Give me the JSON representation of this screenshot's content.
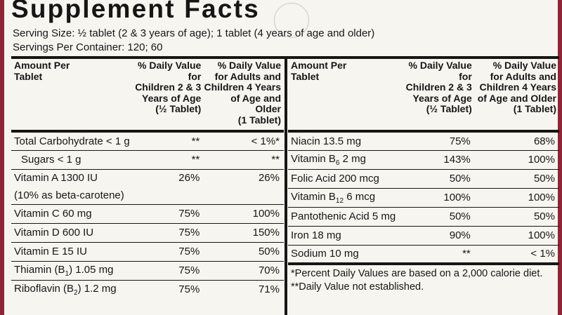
{
  "title": "Supplement Facts",
  "serving_size": "Serving Size: ½ tablet (2 & 3 years of age); 1 tablet (4 years of age and older)",
  "servings_per_container": "Servings Per Container: 120; 60",
  "header": {
    "col1": [
      "Amount Per",
      "Tablet"
    ],
    "col2": [
      "% Daily Value for",
      "Children 2 & 3",
      "Years of Age",
      "(½ Tablet)"
    ],
    "col3": [
      "% Daily Value",
      "for Adults and",
      "Children 4 Years",
      "of Age and Older",
      "(1 Tablet)"
    ]
  },
  "left_rows": [
    {
      "name": "Total Carbohydrate < 1 g",
      "child": "**",
      "adult": "< 1%*"
    },
    {
      "name": "Sugars < 1 g",
      "child": "**",
      "adult": "**"
    },
    {
      "name": "Vitamin A 1300 IU",
      "child": "26%",
      "adult": "26%"
    },
    {
      "name": "(10% as beta-carotene)",
      "child": "",
      "adult": ""
    },
    {
      "name": "Vitamin C 60 mg",
      "child": "75%",
      "adult": "100%"
    },
    {
      "name": "Vitamin D 600 IU",
      "child": "75%",
      "adult": "150%"
    },
    {
      "name": "Vitamin E 15 IU",
      "child": "75%",
      "adult": "50%"
    },
    {
      "name_pre": "Thiamin (B",
      "name_sub": "1",
      "name_post": ") 1.05 mg",
      "child": "75%",
      "adult": "70%"
    },
    {
      "name_pre": "Riboflavin (B",
      "name_sub": "2",
      "name_post": ") 1.2 mg",
      "child": "75%",
      "adult": "71%"
    }
  ],
  "right_rows": [
    {
      "name": "Niacin 13.5 mg",
      "child": "75%",
      "adult": "68%"
    },
    {
      "name_pre": "Vitamin B",
      "name_sub": "6",
      "name_post": " 2 mg",
      "child": "143%",
      "adult": "100%"
    },
    {
      "name": "Folic Acid 200 mcg",
      "child": "50%",
      "adult": "50%"
    },
    {
      "name_pre": "Vitamin B",
      "name_sub": "12",
      "name_post": " 6 mcg",
      "child": "100%",
      "adult": "100%"
    },
    {
      "name": "Pantothenic Acid 5 mg",
      "child": "50%",
      "adult": "50%"
    },
    {
      "name": "Iron 18 mg",
      "child": "90%",
      "adult": "100%"
    },
    {
      "name": "Sodium 10 mg",
      "child": "**",
      "adult": "< 1%"
    }
  ],
  "footnotes": [
    "*Percent Daily Values are based on a 2,000 calorie diet.",
    "**Daily Value not established."
  ]
}
